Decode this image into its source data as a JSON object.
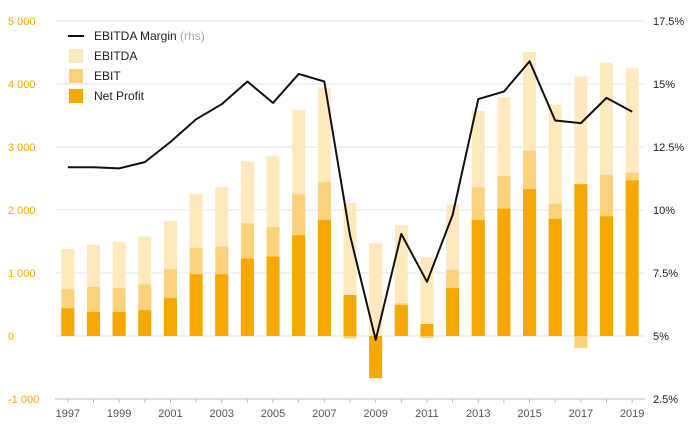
{
  "chart_data": {
    "type": "bar",
    "categories": [
      "1997",
      "1998",
      "1999",
      "2000",
      "2001",
      "2002",
      "2003",
      "2004",
      "2005",
      "2006",
      "2007",
      "2008",
      "2009",
      "2010",
      "2011",
      "2012",
      "2013",
      "2014",
      "2015",
      "2016",
      "2017",
      "2018",
      "2019"
    ],
    "x_tick_labels": [
      "1997",
      "1999",
      "2001",
      "2003",
      "2005",
      "2007",
      "2009",
      "2011",
      "2013",
      "2015",
      "2017",
      "2019"
    ],
    "y_left": {
      "ticks": [
        "-1 000",
        "0",
        "1 000",
        "2 000",
        "3 000",
        "4 000",
        "5 000"
      ],
      "range": [
        -1000,
        5000
      ],
      "color": "#f5a800"
    },
    "y_right": {
      "ticks": [
        "2.5%",
        "5%",
        "7.5%",
        "10%",
        "12.5%",
        "15%",
        "17.5%"
      ],
      "range": [
        2.5,
        17.5
      ]
    },
    "grid": true,
    "legend": {
      "position": "top-left",
      "entries": [
        {
          "label": "EBITDA Margin",
          "note": "(rhs)",
          "kind": "line",
          "color": "#111111"
        },
        {
          "label": "EBITDA",
          "kind": "bar",
          "color": "#fde9bd"
        },
        {
          "label": "EBIT",
          "kind": "bar",
          "color": "#fbd27c"
        },
        {
          "label": "Net Profit",
          "kind": "bar",
          "color": "#f5a800"
        }
      ]
    },
    "series": [
      {
        "name": "EBITDA",
        "axis": "left",
        "type": "bar",
        "color": "#fde9bd",
        "values": [
          1380,
          1450,
          1490,
          1580,
          1830,
          2260,
          2360,
          2770,
          2860,
          3590,
          3940,
          2110,
          1470,
          1760,
          1250,
          2090,
          3570,
          3790,
          4510,
          3670,
          4120,
          4340,
          4250
        ]
      },
      {
        "name": "EBIT",
        "axis": "left",
        "type": "bar",
        "color": "#fbd27c",
        "values": [
          740,
          780,
          760,
          820,
          1060,
          1400,
          1420,
          1790,
          1730,
          2250,
          2440,
          -40,
          -220,
          520,
          -30,
          1050,
          2360,
          2540,
          2940,
          2100,
          -190,
          2560,
          2590
        ]
      },
      {
        "name": "Net Profit",
        "axis": "left",
        "type": "bar",
        "color": "#f5a800",
        "values": [
          440,
          380,
          380,
          410,
          600,
          980,
          980,
          1230,
          1260,
          1600,
          1840,
          650,
          -670,
          490,
          190,
          760,
          1840,
          2020,
          2330,
          1860,
          2410,
          1900,
          2470
        ]
      },
      {
        "name": "EBITDA Margin",
        "axis": "right",
        "type": "line",
        "color": "#111111",
        "values": [
          11.7,
          11.7,
          11.65,
          11.9,
          12.7,
          13.6,
          14.2,
          15.1,
          14.25,
          15.4,
          15.1,
          9.0,
          4.85,
          9.05,
          7.15,
          9.8,
          14.4,
          14.7,
          15.9,
          13.55,
          13.45,
          14.45,
          13.9
        ]
      }
    ]
  }
}
